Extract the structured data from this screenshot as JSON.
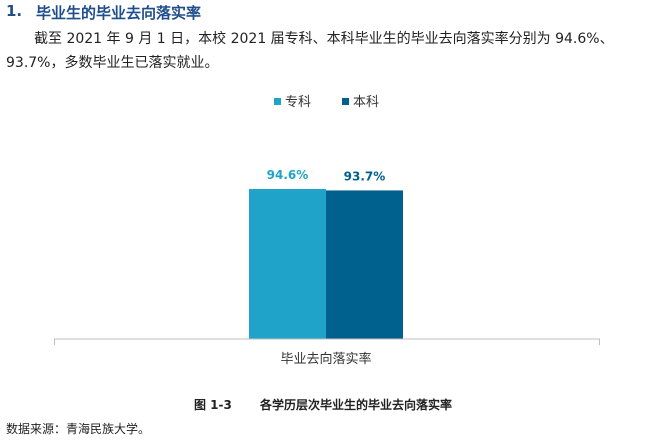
{
  "heading": {
    "number": "1.",
    "text": "毕业生的毕业去向落实率"
  },
  "paragraph": "截至 2021 年 9 月 1 日，本校 2021 届专科、本科毕业生的毕业去向落实率分别为 94.6%、93.7%，多数毕业生已落实就业。",
  "chart_data": {
    "type": "bar",
    "categories": [
      "毕业去向落实率"
    ],
    "series": [
      {
        "name": "专科",
        "values": [
          94.6
        ],
        "label": "94.6%",
        "color": "#1fa3c8"
      },
      {
        "name": "本科",
        "values": [
          93.7
        ],
        "label": "93.7%",
        "color": "#00618f"
      }
    ],
    "xlabel": "",
    "ylabel": "",
    "ylim": [
      0,
      100
    ],
    "grid": false,
    "legend": "top-center"
  },
  "caption": {
    "figure": "图 1-3",
    "text": "各学历层次毕业生的毕业去向落实率"
  },
  "source": "数据来源：青海民族大学。"
}
